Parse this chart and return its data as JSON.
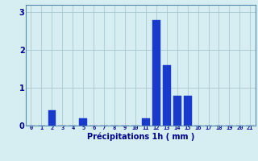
{
  "categories": [
    0,
    1,
    2,
    3,
    4,
    5,
    6,
    7,
    8,
    9,
    10,
    11,
    12,
    13,
    14,
    15,
    16,
    17,
    18,
    19,
    20,
    21
  ],
  "values": [
    0,
    0,
    0.4,
    0,
    0,
    0.2,
    0,
    0,
    0,
    0,
    0,
    0.2,
    2.8,
    1.6,
    0.8,
    0.8,
    0,
    0,
    0,
    0,
    0,
    0
  ],
  "bar_color": "#1a3acc",
  "bar_edge_color": "#1a3acc",
  "bg_color": "#d6eef2",
  "grid_color": "#a8c8d0",
  "xlabel": "Précipitations 1h ( mm )",
  "xlabel_color": "#00008b",
  "tick_color": "#00008b",
  "axis_color": "#5588aa",
  "ylim": [
    0,
    3.2
  ],
  "yticks": [
    0,
    1,
    2,
    3
  ],
  "xlim": [
    -0.5,
    21.5
  ]
}
